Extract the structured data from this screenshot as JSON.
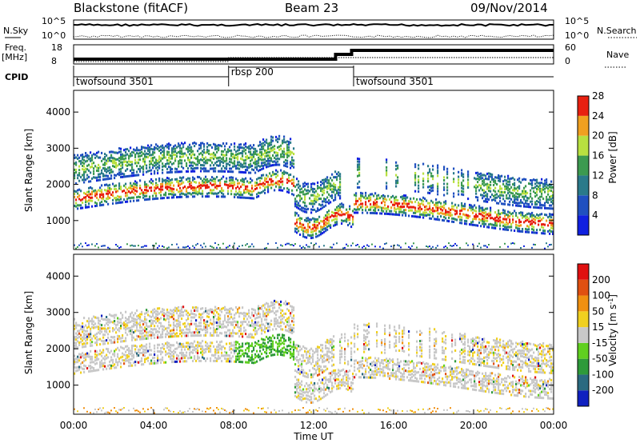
{
  "header": {
    "title": "Blackstone (fitACF)",
    "beam": "Beam 23",
    "date": "09/Nov/2014"
  },
  "strips": {
    "nsky_label": "N.Sky",
    "nsearch_label": "N.Search",
    "nsky_ticks": [
      "10^5",
      "10^0"
    ],
    "nsearch_ticks": [
      "10^5",
      "10^0"
    ],
    "freq_label": "Freq.",
    "freq_unit": "[MHz]",
    "freq_ticks": [
      "18",
      "8"
    ],
    "nave_label": "Nave",
    "nave_ticks": [
      "60",
      "0"
    ],
    "cpid_label": "CPID",
    "cpid_segments": [
      {
        "name": "twofsound 3501",
        "start": 0,
        "end": 7.75
      },
      {
        "name": "rbsp 200",
        "start": 7.75,
        "end": 14.0
      },
      {
        "name": "twofsound 3501",
        "start": 14.0,
        "end": 24
      }
    ]
  },
  "chart_data": [
    {
      "type": "heatmap",
      "ylabel": "Slant Range [km]",
      "xlim": [
        0,
        24
      ],
      "ylim": [
        200,
        4600
      ],
      "yticks": [
        "1000",
        "2000",
        "3000",
        "4000"
      ],
      "colorbar": {
        "label": "Power [dB]",
        "ticks": [
          "4",
          "8",
          "12",
          "16",
          "20",
          "24",
          "28"
        ],
        "colors": [
          "#1020e0",
          "#2050c0",
          "#2a7a8a",
          "#3c9a50",
          "#b8e040",
          "#f0a020",
          "#e82010"
        ]
      }
    },
    {
      "type": "heatmap",
      "ylabel": "Slant Range [km]",
      "xlabel": "Time UT",
      "xlim": [
        0,
        24
      ],
      "ylim": [
        200,
        4600
      ],
      "yticks": [
        "1000",
        "2000",
        "3000",
        "4000"
      ],
      "xticks": [
        "00:00",
        "04:00",
        "08:00",
        "12:00",
        "16:00",
        "20:00",
        "00:00"
      ],
      "colorbar": {
        "label": "Velocity [m s",
        "label_sup": "-1",
        "label_end": "]",
        "ticks": [
          "200",
          "100",
          "50",
          "15",
          "-15",
          "-50",
          "-100",
          "-200"
        ],
        "colors": [
          "#1020c0",
          "#2a6a80",
          "#2e9a3a",
          "#60d020",
          "#c8c8c8",
          "#f0d020",
          "#f09010",
          "#e05010",
          "#e01010"
        ]
      }
    }
  ]
}
